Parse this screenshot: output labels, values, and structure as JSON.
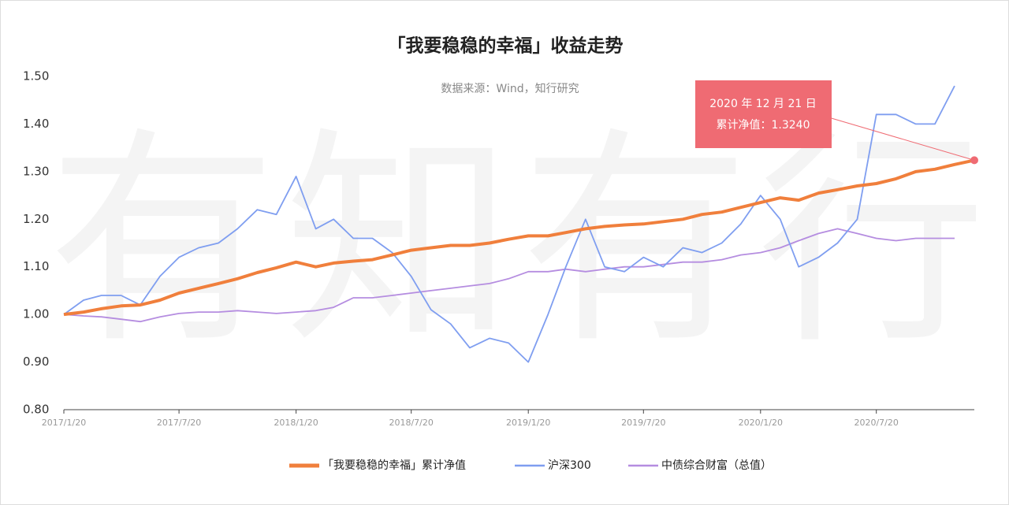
{
  "chart_data": {
    "type": "line",
    "title": "「我要稳稳的幸福」收益走势",
    "subtitle": "数据来源：Wind，知行研究",
    "watermark": "有知有行",
    "annotation": [
      "2020 年 12 月 21 日",
      "累计净值：1.3240"
    ],
    "x": [
      "2017/1/20",
      "2017/2/20",
      "2017/3/20",
      "2017/4/20",
      "2017/5/20",
      "2017/6/20",
      "2017/7/20",
      "2017/8/20",
      "2017/9/20",
      "2017/10/20",
      "2017/11/20",
      "2017/12/20",
      "2018/1/20",
      "2018/2/20",
      "2018/3/20",
      "2018/4/20",
      "2018/5/20",
      "2018/6/20",
      "2018/7/20",
      "2018/8/20",
      "2018/9/20",
      "2018/10/20",
      "2018/11/20",
      "2018/12/20",
      "2019/1/20",
      "2019/2/20",
      "2019/3/20",
      "2019/4/20",
      "2019/5/20",
      "2019/6/20",
      "2019/7/20",
      "2019/8/20",
      "2019/9/20",
      "2019/10/20",
      "2019/11/20",
      "2019/12/20",
      "2020/1/20",
      "2020/2/20",
      "2020/3/20",
      "2020/4/20",
      "2020/5/20",
      "2020/6/20",
      "2020/7/20",
      "2020/8/20",
      "2020/9/20",
      "2020/10/20",
      "2020/11/20",
      "2020/12/21"
    ],
    "xticks": [
      "2017/1/20",
      "2017/7/20",
      "2018/1/20",
      "2018/7/20",
      "2019/1/20",
      "2019/7/20",
      "2020/1/20",
      "2020/7/20"
    ],
    "ylim": [
      0.8,
      1.5
    ],
    "yticks": [
      {
        "value": 0.8,
        "label": "0.80"
      },
      {
        "value": 0.9,
        "label": "0.90"
      },
      {
        "value": 1,
        "label": "1.00"
      },
      {
        "value": 1.1,
        "label": "1.10"
      },
      {
        "value": 1.2,
        "label": "1.20"
      },
      {
        "value": 1.3,
        "label": "1.30"
      },
      {
        "value": 1.4,
        "label": "1.40"
      },
      {
        "value": 1.5,
        "label": "1.50"
      }
    ],
    "series": [
      {
        "name": "「我要稳稳的幸福」累计净值",
        "color": "#f07f3c",
        "width": 4,
        "values": [
          1.0,
          1.005,
          1.012,
          1.018,
          1.02,
          1.03,
          1.045,
          1.055,
          1.065,
          1.075,
          1.088,
          1.098,
          1.11,
          1.1,
          1.108,
          1.112,
          1.115,
          1.125,
          1.135,
          1.14,
          1.145,
          1.145,
          1.15,
          1.158,
          1.165,
          1.165,
          1.172,
          1.18,
          1.185,
          1.188,
          1.19,
          1.195,
          1.2,
          1.21,
          1.215,
          1.225,
          1.235,
          1.245,
          1.24,
          1.255,
          1.262,
          1.27,
          1.275,
          1.285,
          1.3,
          1.305,
          1.315,
          1.324
        ]
      },
      {
        "name": "沪深300",
        "color": "#7f9ef0",
        "width": 1.8,
        "values": [
          1.0,
          1.03,
          1.04,
          1.04,
          1.02,
          1.08,
          1.12,
          1.14,
          1.15,
          1.18,
          1.22,
          1.21,
          1.29,
          1.18,
          1.2,
          1.16,
          1.16,
          1.13,
          1.08,
          1.01,
          0.98,
          0.93,
          0.95,
          0.94,
          0.9,
          1.0,
          1.1,
          1.2,
          1.1,
          1.09,
          1.12,
          1.1,
          1.14,
          1.13,
          1.15,
          1.19,
          1.25,
          1.2,
          1.1,
          1.12,
          1.15,
          1.2,
          1.42,
          1.42,
          1.4,
          1.4,
          1.48,
          null
        ]
      },
      {
        "name": "中债综合财富（总值）",
        "color": "#b58de0",
        "width": 1.8,
        "values": [
          1.0,
          0.997,
          0.995,
          0.99,
          0.985,
          0.995,
          1.002,
          1.005,
          1.005,
          1.008,
          1.005,
          1.002,
          1.005,
          1.008,
          1.015,
          1.035,
          1.035,
          1.04,
          1.045,
          1.05,
          1.055,
          1.06,
          1.065,
          1.075,
          1.09,
          1.09,
          1.095,
          1.09,
          1.095,
          1.1,
          1.1,
          1.105,
          1.11,
          1.11,
          1.115,
          1.125,
          1.13,
          1.14,
          1.155,
          1.17,
          1.18,
          1.17,
          1.16,
          1.155,
          1.16,
          1.16,
          1.16,
          null
        ]
      }
    ]
  }
}
